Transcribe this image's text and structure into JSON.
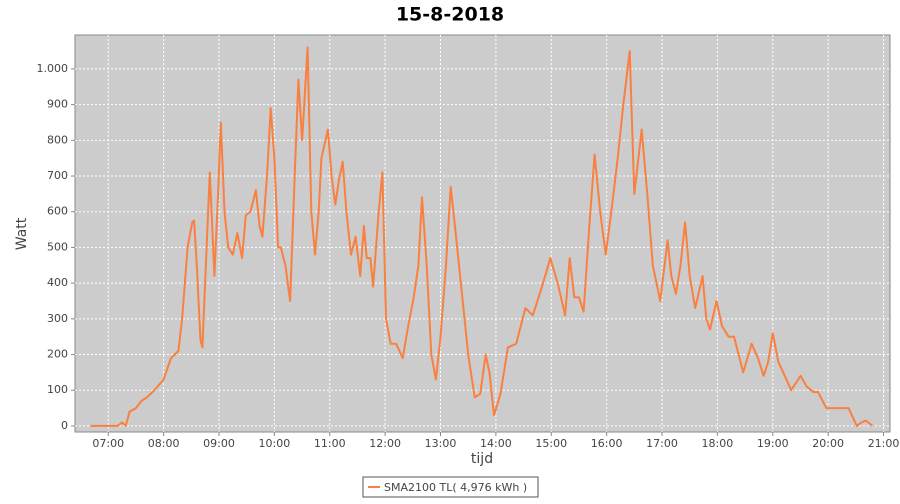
{
  "chart_data": {
    "type": "line",
    "title": "15-8-2018",
    "x_label": "tijd",
    "y_label": "Watt",
    "x": [
      "06:41",
      "07:05",
      "07:10",
      "07:15",
      "07:19",
      "07:23",
      "07:30",
      "07:36",
      "07:42",
      "07:50",
      "08:00",
      "08:08",
      "08:16",
      "08:20",
      "08:26",
      "08:31",
      "08:33",
      "08:36",
      "08:40",
      "08:42",
      "08:45",
      "08:50",
      "08:55",
      "08:59",
      "09:02",
      "09:06",
      "09:10",
      "09:15",
      "09:20",
      "09:25",
      "09:29",
      "09:34",
      "09:40",
      "09:44",
      "09:47",
      "09:52",
      "09:56",
      "10:00",
      "10:04",
      "10:07",
      "10:12",
      "10:17",
      "10:22",
      "10:26",
      "10:30",
      "10:36",
      "10:40",
      "10:44",
      "10:48",
      "10:51",
      "10:58",
      "11:02",
      "11:06",
      "11:10",
      "11:14",
      "11:18",
      "11:23",
      "11:28",
      "11:33",
      "11:37",
      "11:40",
      "11:44",
      "11:47",
      "11:53",
      "11:57",
      "12:01",
      "12:06",
      "12:12",
      "12:19",
      "12:25",
      "12:31",
      "12:36",
      "12:40",
      "12:45",
      "12:50",
      "12:55",
      "13:00",
      "13:06",
      "13:11",
      "13:16",
      "13:24",
      "13:30",
      "13:37",
      "13:43",
      "13:49",
      "13:53",
      "13:58",
      "14:05",
      "14:13",
      "14:22",
      "14:32",
      "14:40",
      "14:50",
      "14:59",
      "15:07",
      "15:15",
      "15:20",
      "15:25",
      "15:30",
      "15:35",
      "15:41",
      "15:47",
      "15:53",
      "15:59",
      "16:05",
      "16:12",
      "16:18",
      "16:25",
      "16:30",
      "16:38",
      "16:44",
      "16:50",
      "16:58",
      "17:06",
      "17:10",
      "17:15",
      "17:20",
      "17:25",
      "17:30",
      "17:36",
      "17:44",
      "17:48",
      "17:52",
      "17:59",
      "18:05",
      "18:12",
      "18:18",
      "18:23",
      "18:28",
      "18:37",
      "18:44",
      "18:50",
      "18:55",
      "19:00",
      "19:06",
      "19:13",
      "19:20",
      "19:30",
      "19:37",
      "19:44",
      "19:49",
      "19:58",
      "20:10",
      "20:22",
      "20:31",
      "20:36",
      "20:41",
      "20:48"
    ],
    "series": [
      {
        "name": "SMA2100 TL( 4,976 kWh )",
        "color": "#f98040",
        "values": [
          0,
          0,
          0,
          10,
          0,
          40,
          50,
          70,
          80,
          100,
          130,
          190,
          210,
          300,
          500,
          570,
          575,
          450,
          240,
          220,
          400,
          710,
          420,
          650,
          850,
          600,
          500,
          480,
          540,
          470,
          590,
          600,
          660,
          560,
          530,
          700,
          890,
          750,
          500,
          500,
          450,
          350,
          700,
          970,
          800,
          1060,
          600,
          480,
          600,
          750,
          830,
          700,
          620,
          690,
          740,
          600,
          480,
          530,
          420,
          560,
          470,
          470,
          390,
          600,
          710,
          300,
          230,
          230,
          190,
          280,
          360,
          450,
          640,
          450,
          200,
          130,
          250,
          450,
          670,
          550,
          350,
          200,
          80,
          90,
          200,
          150,
          30,
          90,
          220,
          230,
          330,
          310,
          390,
          470,
          400,
          310,
          470,
          360,
          360,
          320,
          550,
          760,
          600,
          480,
          600,
          750,
          900,
          1050,
          650,
          830,
          650,
          450,
          350,
          520,
          420,
          370,
          450,
          570,
          420,
          330,
          420,
          300,
          270,
          350,
          280,
          250,
          250,
          200,
          150,
          230,
          190,
          140,
          180,
          260,
          180,
          140,
          100,
          140,
          110,
          95,
          95,
          50,
          50,
          50,
          0,
          10,
          15,
          0
        ]
      }
    ],
    "xlim": [
      "06:24",
      "21:07"
    ],
    "xticks": [
      "07:00",
      "08:00",
      "09:00",
      "10:00",
      "11:00",
      "12:00",
      "13:00",
      "14:00",
      "15:00",
      "16:00",
      "17:00",
      "18:00",
      "19:00",
      "20:00",
      "21:00"
    ],
    "ylim": [
      -17,
      1095
    ],
    "yticks": [
      0,
      100,
      200,
      300,
      400,
      500,
      600,
      700,
      800,
      900,
      {
        "value": 1000,
        "label": "1.000"
      }
    ],
    "grid": true,
    "legend": "bottom"
  }
}
